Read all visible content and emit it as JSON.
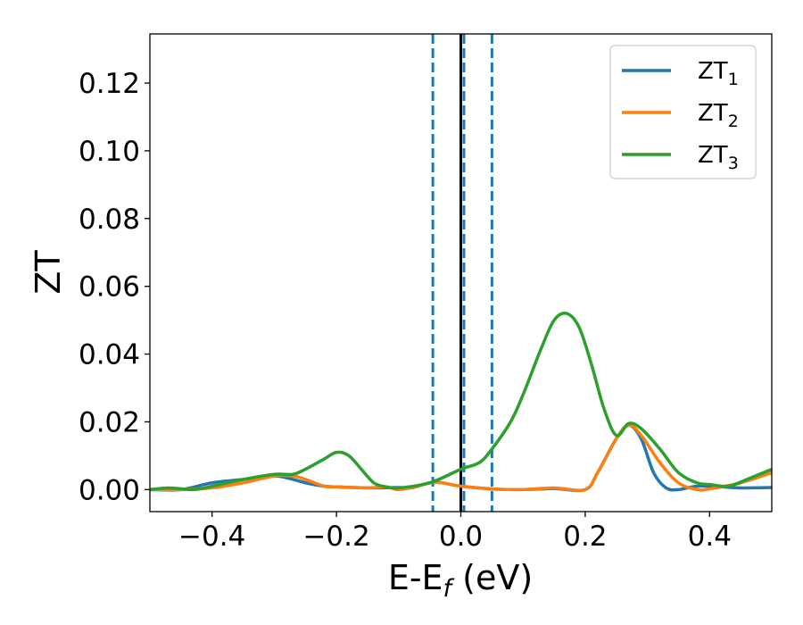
{
  "chart_data": {
    "type": "line",
    "xlabel": "E-E",
    "xlabel_sub": "f",
    "xlabel_unit": " (eV)",
    "ylabel": "ZT",
    "xlim": [
      -0.5,
      0.5
    ],
    "ylim": [
      -0.0065,
      0.1345
    ],
    "grid": false,
    "legend_position": "top-right",
    "x_ticks": [
      {
        "value": -0.4,
        "label": "−0.4"
      },
      {
        "value": -0.2,
        "label": "−0.2"
      },
      {
        "value": 0.0,
        "label": "0.0"
      },
      {
        "value": 0.2,
        "label": "0.2"
      },
      {
        "value": 0.4,
        "label": "0.4"
      }
    ],
    "y_ticks": [
      {
        "value": 0.0,
        "label": "0.00"
      },
      {
        "value": 0.02,
        "label": "0.02"
      },
      {
        "value": 0.04,
        "label": "0.04"
      },
      {
        "value": 0.06,
        "label": "0.06"
      },
      {
        "value": 0.08,
        "label": "0.08"
      },
      {
        "value": 0.1,
        "label": "0.10"
      },
      {
        "value": 0.12,
        "label": "0.12"
      }
    ],
    "reference_lines": [
      {
        "x": -0.045,
        "style": "dashed",
        "color": "#1f77b4"
      },
      {
        "x": 0.005,
        "style": "dashed",
        "color": "#1f77b4"
      },
      {
        "x": 0.05,
        "style": "dashed",
        "color": "#1f77b4"
      },
      {
        "x": 0.0,
        "style": "solid",
        "color": "#000000"
      }
    ],
    "series": [
      {
        "name": "ZT",
        "name_sub": "1",
        "color": "#1f77b4",
        "points": [
          [
            -0.5,
            0.0
          ],
          [
            -0.45,
            0.0
          ],
          [
            -0.4,
            0.002
          ],
          [
            -0.35,
            0.003
          ],
          [
            -0.3,
            0.004
          ],
          [
            -0.27,
            0.003
          ],
          [
            -0.25,
            0.002
          ],
          [
            -0.22,
            0.001
          ],
          [
            -0.2,
            0.0008
          ],
          [
            -0.15,
            0.0005
          ],
          [
            -0.1,
            0.0006
          ],
          [
            -0.08,
            0.0005
          ],
          [
            -0.05,
            0.002
          ],
          [
            -0.03,
            0.002
          ],
          [
            0.0,
            0.001
          ],
          [
            0.05,
            0.0002
          ],
          [
            0.1,
            0.0
          ],
          [
            0.15,
            0.0003
          ],
          [
            0.2,
            0.0
          ],
          [
            0.22,
            0.005
          ],
          [
            0.25,
            0.015
          ],
          [
            0.27,
            0.019
          ],
          [
            0.29,
            0.015
          ],
          [
            0.31,
            0.005
          ],
          [
            0.33,
            0.0005
          ],
          [
            0.35,
            0.0
          ],
          [
            0.38,
            0.001
          ],
          [
            0.42,
            0.0008
          ],
          [
            0.45,
            0.0005
          ],
          [
            0.5,
            0.0006
          ]
        ]
      },
      {
        "name": "ZT",
        "name_sub": "2",
        "color": "#ff7f0e",
        "points": [
          [
            -0.5,
            0.0
          ],
          [
            -0.45,
            0.0
          ],
          [
            -0.4,
            0.0005
          ],
          [
            -0.35,
            0.002
          ],
          [
            -0.3,
            0.004
          ],
          [
            -0.27,
            0.004
          ],
          [
            -0.25,
            0.003
          ],
          [
            -0.22,
            0.001
          ],
          [
            -0.2,
            0.0008
          ],
          [
            -0.15,
            0.0005
          ],
          [
            -0.12,
            0.0008
          ],
          [
            -0.1,
            0.0
          ],
          [
            -0.07,
            0.001
          ],
          [
            -0.05,
            0.002
          ],
          [
            -0.03,
            0.002
          ],
          [
            0.0,
            0.001
          ],
          [
            0.05,
            0.0002
          ],
          [
            0.1,
            0.0
          ],
          [
            0.15,
            0.0005
          ],
          [
            0.2,
            0.0
          ],
          [
            0.22,
            0.005
          ],
          [
            0.25,
            0.015
          ],
          [
            0.27,
            0.019
          ],
          [
            0.29,
            0.016
          ],
          [
            0.32,
            0.008
          ],
          [
            0.35,
            0.002
          ],
          [
            0.38,
            0.0
          ],
          [
            0.4,
            0.0002
          ],
          [
            0.45,
            0.002
          ],
          [
            0.5,
            0.005
          ]
        ]
      },
      {
        "name": "ZT",
        "name_sub": "3",
        "color": "#2ca02c",
        "points": [
          [
            -0.5,
            0.0
          ],
          [
            -0.47,
            0.0005
          ],
          [
            -0.43,
            0.0
          ],
          [
            -0.4,
            0.001
          ],
          [
            -0.35,
            0.003
          ],
          [
            -0.3,
            0.0045
          ],
          [
            -0.27,
            0.0045
          ],
          [
            -0.25,
            0.006
          ],
          [
            -0.22,
            0.009
          ],
          [
            -0.2,
            0.011
          ],
          [
            -0.18,
            0.01
          ],
          [
            -0.16,
            0.006
          ],
          [
            -0.14,
            0.002
          ],
          [
            -0.12,
            0.0008
          ],
          [
            -0.1,
            0.0005
          ],
          [
            -0.05,
            0.002
          ],
          [
            0.0,
            0.006
          ],
          [
            0.03,
            0.008
          ],
          [
            0.05,
            0.012
          ],
          [
            0.08,
            0.02
          ],
          [
            0.1,
            0.028
          ],
          [
            0.13,
            0.042
          ],
          [
            0.15,
            0.05
          ],
          [
            0.17,
            0.052
          ],
          [
            0.19,
            0.048
          ],
          [
            0.21,
            0.037
          ],
          [
            0.23,
            0.024
          ],
          [
            0.25,
            0.016
          ],
          [
            0.27,
            0.0195
          ],
          [
            0.29,
            0.018
          ],
          [
            0.32,
            0.012
          ],
          [
            0.35,
            0.005
          ],
          [
            0.38,
            0.002
          ],
          [
            0.4,
            0.0015
          ],
          [
            0.43,
            0.001
          ],
          [
            0.46,
            0.003
          ],
          [
            0.5,
            0.006
          ]
        ]
      }
    ]
  }
}
